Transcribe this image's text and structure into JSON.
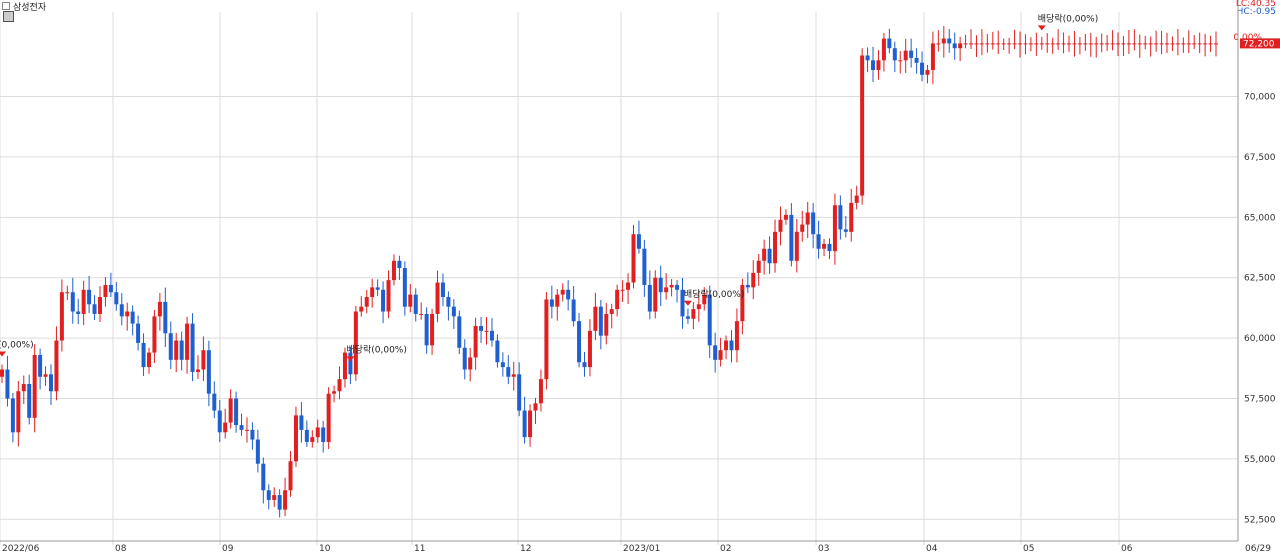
{
  "header": {
    "symbol": "삼성전자",
    "lc_label": "LC:40.35",
    "hc_label": "HC:-0.95",
    "change_pct": "0.00%"
  },
  "colors": {
    "up": "#e02020",
    "down": "#1f5fcf",
    "grid": "#dcdcdc"
  },
  "icons": [
    "settings-icon",
    "dividend-arrow-icon"
  ],
  "chart_data": {
    "type": "candlestick",
    "x_tick_labels": [
      "2022/06",
      "08",
      "09",
      "10",
      "11",
      "12",
      "2023/01",
      "02",
      "03",
      "04",
      "05",
      "06",
      "06/29"
    ],
    "y_ticks": [
      "52,500",
      "55,000",
      "57,500",
      "60,000",
      "62,500",
      "65,000",
      "67,500",
      "70,000"
    ],
    "ylim": [
      51600,
      73500
    ],
    "current_price": 72200,
    "current_price_label": "72,200",
    "dividend_markers": [
      {
        "index": 0,
        "label": "(0,00%)"
      },
      {
        "index": 64,
        "label": "배당락(0,00%)"
      },
      {
        "index": 126,
        "label": "배당락(0,00%)"
      },
      {
        "index": 191,
        "label": "배당락(0,00%)"
      }
    ],
    "closes": [
      58700,
      57500,
      56100,
      57800,
      58100,
      56700,
      59300,
      58400,
      58500,
      57800,
      59900,
      61900,
      61900,
      61100,
      61000,
      62000,
      61400,
      61000,
      61700,
      62200,
      61900,
      61400,
      60900,
      61100,
      60600,
      59800,
      58800,
      59400,
      60900,
      61500,
      60200,
      59100,
      59900,
      59100,
      60600,
      58600,
      58700,
      59500,
      57700,
      57000,
      56100,
      56500,
      57500,
      56400,
      56200,
      56200,
      55800,
      54800,
      53700,
      53300,
      53500,
      52900,
      53700,
      54900,
      56800,
      56200,
      55700,
      55900,
      56300,
      55700,
      57700,
      57800,
      58300,
      59400,
      58500,
      61100,
      61300,
      61700,
      62100,
      62000,
      61100,
      62400,
      63200,
      62900,
      61300,
      61800,
      61000,
      61000,
      59700,
      61000,
      62300,
      61700,
      61300,
      60900,
      59600,
      58700,
      59200,
      60500,
      60300,
      60300,
      59900,
      59000,
      58800,
      58400,
      58500,
      57000,
      55900,
      57000,
      57300,
      58300,
      61600,
      61300,
      61800,
      62000,
      61600,
      60700,
      59000,
      58800,
      60300,
      61300,
      60100,
      61000,
      61200,
      62000,
      62000,
      62300,
      64300,
      63700,
      62200,
      61100,
      62500,
      61900,
      62100,
      62200,
      62000,
      60900,
      60800,
      61200,
      61400,
      61800,
      59700,
      59100,
      59500,
      59900,
      59500,
      60700,
      62200,
      62100,
      62700,
      63200,
      63700,
      63100,
      64400,
      64900,
      65100,
      63200,
      64400,
      64700,
      65200,
      64300,
      63700,
      63900,
      63600,
      65500,
      64500,
      64400,
      65600,
      65900,
      71700,
      71500,
      71100,
      71500,
      72400,
      72000,
      71500,
      71500,
      71900,
      71600,
      71400,
      70900,
      71100,
      72200,
      72200,
      72400,
      72200,
      72000,
      72200,
      72200,
      72200,
      72200,
      72200,
      72200,
      72200,
      72200,
      72200,
      72200,
      72200,
      72200,
      72200,
      72200,
      72200,
      72200,
      72200,
      72200,
      72200,
      72200,
      72200,
      72200,
      72200,
      72200,
      72200,
      72200,
      72200,
      72200,
      72200,
      72200,
      72200,
      72200,
      72200,
      72200,
      72200,
      72200,
      72200,
      72200,
      72200,
      72200,
      72200,
      72200,
      72200,
      72200,
      72200,
      72200,
      72200,
      72200
    ]
  }
}
